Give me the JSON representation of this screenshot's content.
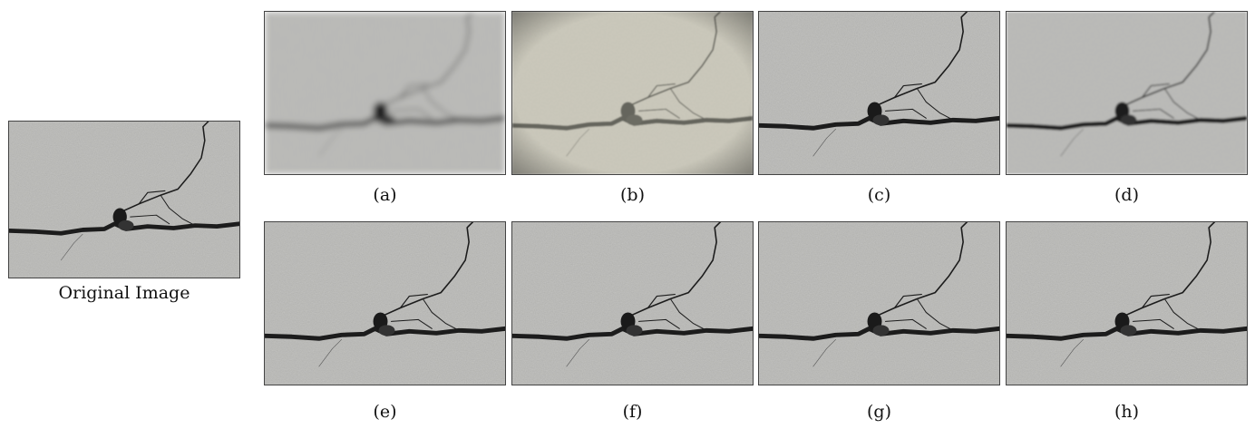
{
  "original": {
    "label": "Original Image"
  },
  "panels": [
    {
      "label": "(a)"
    },
    {
      "label": "(b)"
    },
    {
      "label": "(c)"
    },
    {
      "label": "(d)"
    },
    {
      "label": "(e)"
    },
    {
      "label": "(f)"
    },
    {
      "label": "(g)"
    },
    {
      "label": "(h)"
    }
  ]
}
